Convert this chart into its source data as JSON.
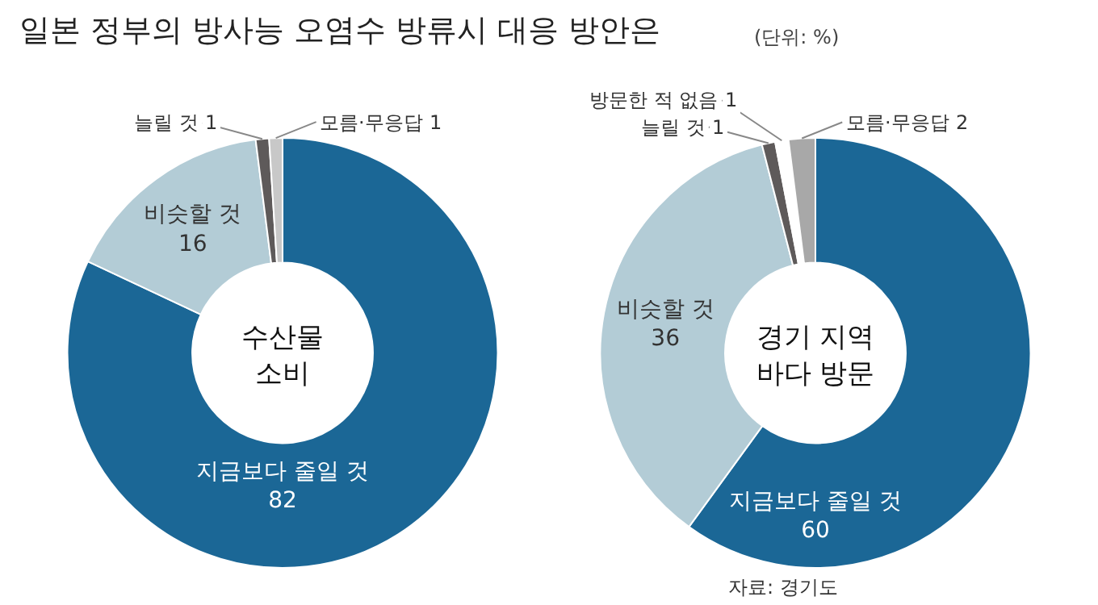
{
  "chart_data": [
    {
      "type": "donut",
      "title": "수산물\n소비",
      "categories": [
        "지금보다 줄일 것",
        "비슷할 것",
        "늘릴 것",
        "모름·무응답"
      ],
      "values": [
        82,
        16,
        1,
        1
      ],
      "colors": [
        "#1b6796",
        "#b3ccd6",
        "#5e5a5a",
        "#c8c8c8"
      ],
      "data_labels": true,
      "annotations": [
        "일본 정부의 방사능 오염수 방류시 대응 방안은",
        "(단위: %)"
      ]
    },
    {
      "type": "donut",
      "title": "경기 지역\n바다 방문",
      "categories": [
        "지금보다 줄일 것",
        "비슷할 것",
        "늘릴 것",
        "방문한 적 없음",
        "모름·무응답"
      ],
      "values": [
        60,
        36,
        1,
        1,
        2
      ],
      "colors": [
        "#1b6796",
        "#b3ccd6",
        "#5e5a5a",
        "#ffffff",
        "#a8a8a8"
      ],
      "data_labels": true,
      "annotations": [
        "자료: 경기도"
      ]
    }
  ]
}
